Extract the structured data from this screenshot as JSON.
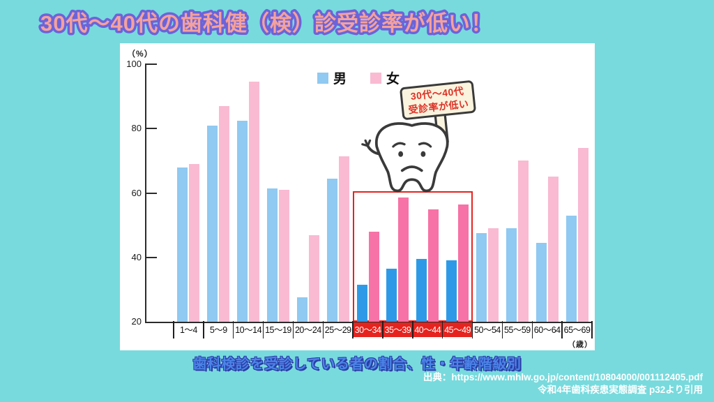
{
  "title": "30代～40代の歯科健（検）診受診率が低い！",
  "legend": {
    "male_label": "男",
    "female_label": "女"
  },
  "sign": {
    "line1": "30代～40代",
    "line2": "受診率が低い"
  },
  "caption": "歯科検診を受診している者の割合、性・年齢階級別",
  "source": {
    "line1": "出典：https://www.mhlw.go.jp/content/10804000/001112405.pdf",
    "line2": "令和4年歯科疾患実態調査 p32より引用"
  },
  "y_axis": {
    "unit_label": "（%）",
    "ticks": [
      100,
      80,
      60,
      40,
      20
    ]
  },
  "x_axis": {
    "unit_label": "（歳）"
  },
  "chart_data": {
    "type": "bar",
    "categories": [
      "1～4",
      "5～9",
      "10～14",
      "15～19",
      "20～24",
      "25～29",
      "30～34",
      "35～39",
      "40～44",
      "45～49",
      "50～54",
      "55～59",
      "60～64",
      "65～69"
    ],
    "series": [
      {
        "name": "男",
        "values": [
          68,
          81,
          82.5,
          61.5,
          27.5,
          64.5,
          31.5,
          36.5,
          39.5,
          39,
          47.5,
          49,
          44.5,
          53
        ]
      },
      {
        "name": "女",
        "values": [
          69,
          87,
          94.5,
          61,
          47,
          71.5,
          48,
          58.5,
          55,
          56.5,
          49,
          70,
          65,
          74
        ]
      }
    ],
    "highlighted_categories": [
      "30～34",
      "35～39",
      "40～44",
      "45～49"
    ],
    "highlight_annotation": "30代～40代 受診率が低い",
    "ylim": [
      20,
      100
    ],
    "ylabel": "（%）",
    "xlabel": "（歳）",
    "grid": false,
    "legend_position": "top-center"
  },
  "colors": {
    "background": "#78DADD",
    "panel": "#FFFFFF",
    "male": "#90C9F1",
    "female": "#F9BAD2",
    "male_highlight": "#2E9AE7",
    "female_highlight": "#F772A6",
    "highlight_red": "#E6231E",
    "title_fill": "#F5A19C",
    "title_stroke": "#6C63DA",
    "caption_blue": "#4B84E8",
    "sign_background": "#FAF3DE",
    "sign_text": "#DE3126",
    "axis": "#2B2B2B"
  }
}
